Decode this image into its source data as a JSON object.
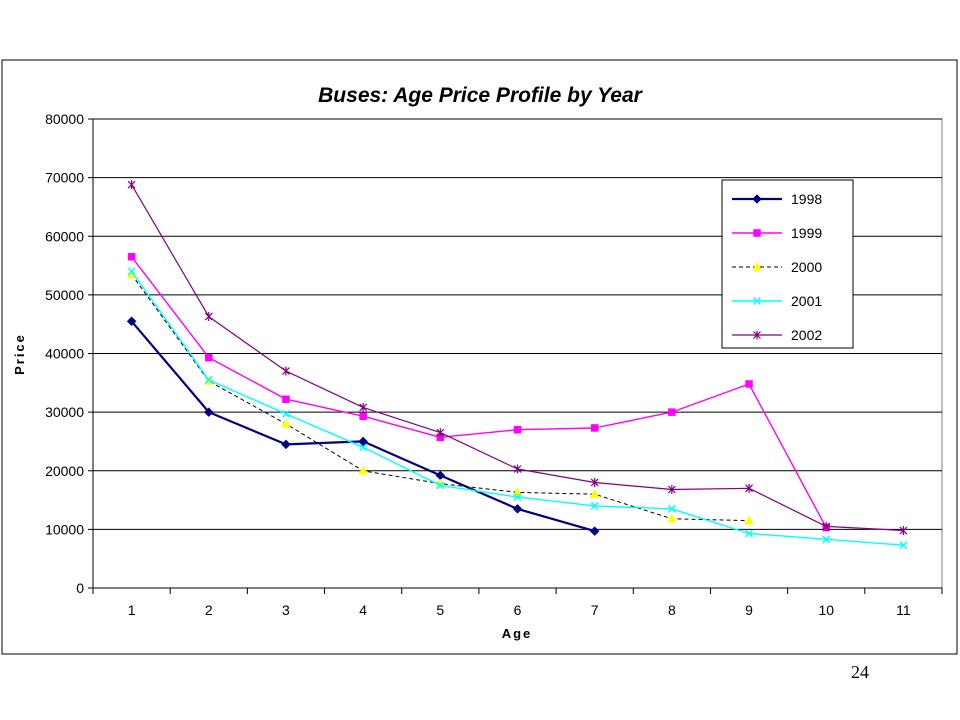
{
  "page_number": "24",
  "chart_data": {
    "type": "line",
    "title": "Buses: Age Price Profile by Year",
    "xlabel": "Age",
    "ylabel": "Price",
    "x": [
      1,
      2,
      3,
      4,
      5,
      6,
      7,
      8,
      9,
      10,
      11
    ],
    "ylim": [
      0,
      80000
    ],
    "yticks": [
      0,
      10000,
      20000,
      30000,
      40000,
      50000,
      60000,
      70000,
      80000
    ],
    "grid": "horizontal major gridlines",
    "legend_position": "top-right (inside plot)",
    "series": [
      {
        "name": "1998",
        "color": "#000080",
        "marker": "diamond",
        "dash": "solid",
        "width": 2.2,
        "values": [
          45500,
          30000,
          24500,
          25000,
          19200,
          13500,
          9700,
          null,
          null,
          null,
          null
        ]
      },
      {
        "name": "1999",
        "color": "#FF00FF",
        "marker": "square",
        "dash": "solid",
        "width": 1.4,
        "values": [
          56500,
          39300,
          32200,
          29300,
          25700,
          27000,
          27300,
          30000,
          34800,
          10300,
          null
        ]
      },
      {
        "name": "2000",
        "color": "#000000",
        "markerColor": "#FFFF00",
        "marker": "triangle",
        "dash": "4,3",
        "width": 1,
        "values": [
          53500,
          35300,
          28000,
          20000,
          17800,
          16300,
          16000,
          11800,
          11500,
          null,
          null
        ]
      },
      {
        "name": "2001",
        "color": "#00FFFF",
        "marker": "x",
        "dash": "solid",
        "width": 1.4,
        "values": [
          54000,
          35500,
          29700,
          24000,
          17500,
          15500,
          14000,
          13500,
          9300,
          8300,
          7300
        ]
      },
      {
        "name": "2002",
        "color": "#800080",
        "marker": "star",
        "dash": "solid",
        "width": 1.2,
        "values": [
          68800,
          46300,
          37000,
          30800,
          26500,
          20300,
          18000,
          16800,
          17000,
          10500,
          9800
        ]
      }
    ]
  }
}
